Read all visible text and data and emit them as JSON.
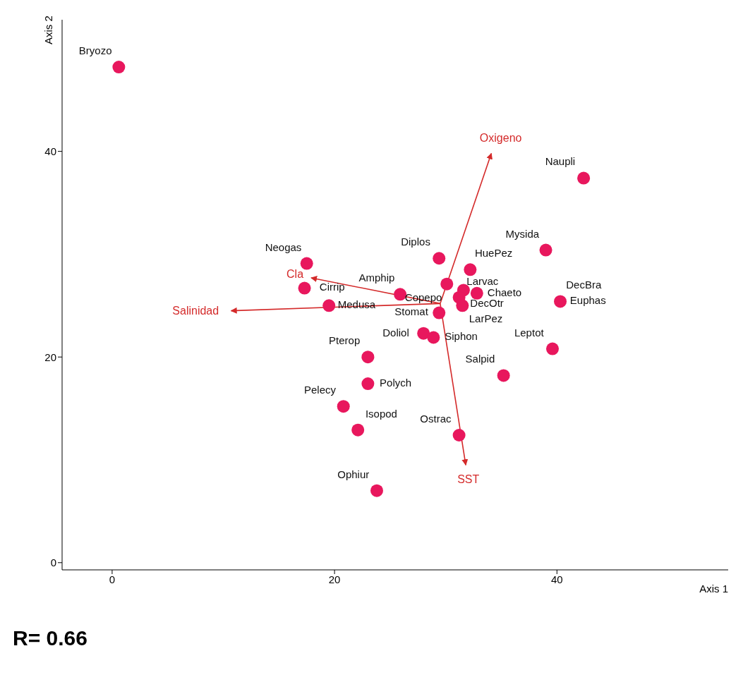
{
  "chart_data": {
    "type": "scatter",
    "xlabel": "Axis 1",
    "ylabel": "Axis 2",
    "xlim": [
      -4.5,
      55.4
    ],
    "ylim": [
      -0.7,
      52.8
    ],
    "xticks": [
      0,
      20,
      40
    ],
    "yticks": [
      0,
      20,
      40
    ],
    "grid": false,
    "legend": false,
    "series": [
      {
        "marker": "circle",
        "color": "#e8175d",
        "x": [
          0.6,
          42.4,
          39.0,
          29.4,
          32.2,
          30.1,
          25.9,
          31.6,
          32.8,
          31.2,
          31.5,
          40.3,
          17.5,
          17.3,
          19.5,
          29.4,
          28.0,
          28.9,
          23.0,
          23.0,
          20.8,
          22.1,
          23.8,
          31.2,
          35.2,
          39.6
        ],
        "values": [
          48.2,
          37.4,
          30.4,
          29.6,
          28.5,
          27.1,
          26.1,
          26.5,
          26.2,
          25.8,
          25.0,
          25.4,
          29.1,
          26.7,
          25.0,
          24.3,
          22.3,
          21.9,
          20.0,
          17.4,
          15.2,
          12.9,
          7.0,
          12.4,
          18.2,
          20.8
        ]
      },
      {
        "type": "line",
        "marker": "none",
        "name": "Oxigeno",
        "color": "#d42a2a",
        "x": [
          29.5,
          34.1
        ],
        "values": [
          25.2,
          39.8
        ]
      },
      {
        "type": "line",
        "marker": "none",
        "name": "Cla",
        "color": "#d42a2a",
        "x": [
          29.5,
          17.9
        ],
        "values": [
          25.2,
          27.7
        ]
      },
      {
        "type": "line",
        "marker": "none",
        "name": "Salinidad",
        "color": "#d42a2a",
        "x": [
          29.5,
          10.7
        ],
        "values": [
          25.2,
          24.5
        ]
      },
      {
        "type": "line",
        "marker": "none",
        "name": "SST",
        "color": "#d42a2a",
        "x": [
          29.5,
          31.8
        ],
        "values": [
          25.2,
          9.5
        ]
      }
    ],
    "annotations": [
      {
        "text": "Bryozo",
        "x": 0.6,
        "y": 48.2
      },
      {
        "text": "Naupli",
        "x": 42.4,
        "y": 37.4
      },
      {
        "text": "Mysida",
        "x": 39.0,
        "y": 30.4
      },
      {
        "text": "Diplos",
        "x": 29.4,
        "y": 29.6
      },
      {
        "text": "DecOtr",
        "x": 31.6,
        "y": 26.5
      },
      {
        "text": "HuePez",
        "x": 32.2,
        "y": 28.5
      },
      {
        "text": "Copepo",
        "x": 30.1,
        "y": 27.1
      },
      {
        "text": "Larvac",
        "x": 31.2,
        "y": 25.8
      },
      {
        "text": "Chaeto",
        "x": 32.8,
        "y": 26.2
      },
      {
        "text": "DecBra",
        "x": 40.3,
        "y": 25.4
      },
      {
        "text": "Euphas",
        "x": 40.3,
        "y": 25.4
      },
      {
        "text": "LarPez",
        "x": 31.5,
        "y": 25.0
      },
      {
        "text": "Stomat",
        "x": 29.4,
        "y": 24.3
      },
      {
        "text": "Amphip",
        "x": 25.9,
        "y": 26.1
      },
      {
        "text": "Neogas",
        "x": 17.5,
        "y": 29.1
      },
      {
        "text": "Cirrip",
        "x": 17.3,
        "y": 26.7
      },
      {
        "text": "Medusa",
        "x": 19.5,
        "y": 25.0
      },
      {
        "text": "Doliol",
        "x": 28.0,
        "y": 22.3
      },
      {
        "text": "Siphon",
        "x": 28.9,
        "y": 21.9
      },
      {
        "text": "Pterop",
        "x": 23.0,
        "y": 20.0
      },
      {
        "text": "Polych",
        "x": 23.0,
        "y": 17.4
      },
      {
        "text": "Pelecy",
        "x": 20.8,
        "y": 15.2
      },
      {
        "text": "Isopod",
        "x": 22.1,
        "y": 12.9
      },
      {
        "text": "Ophiur",
        "x": 23.8,
        "y": 7.0
      },
      {
        "text": "Ostrac",
        "x": 31.2,
        "y": 12.4
      },
      {
        "text": "Salpid",
        "x": 35.2,
        "y": 18.2
      },
      {
        "text": "Leptot",
        "x": 39.6,
        "y": 20.8
      },
      "R= 0.66"
    ]
  }
}
